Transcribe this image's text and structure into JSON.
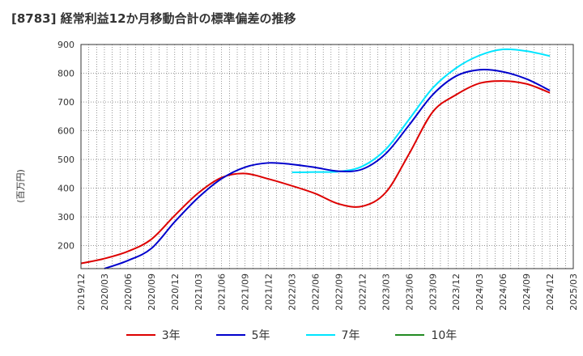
{
  "chart_data": {
    "type": "line",
    "title": "[8783]  経常利益12か月移動合計の標準偏差の推移",
    "ylabel": "(百万円)",
    "xlabel": "",
    "ylim": [
      120,
      900
    ],
    "yticks": [
      200,
      300,
      400,
      500,
      600,
      700,
      800,
      900
    ],
    "x_ticks": [
      "2019/12",
      "2020/03",
      "2020/06",
      "2020/09",
      "2020/12",
      "2021/03",
      "2021/06",
      "2021/09",
      "2021/12",
      "2022/03",
      "2022/06",
      "2022/09",
      "2022/12",
      "2023/03",
      "2023/06",
      "2023/09",
      "2023/12",
      "2024/03",
      "2024/06",
      "2024/09",
      "2024/12",
      "2025/03"
    ],
    "grid": true,
    "legend_position": "bottom",
    "series": [
      {
        "name": "3年",
        "color": "#dd0000",
        "x": [
          "2019/12",
          "2020/03",
          "2020/06",
          "2020/09",
          "2020/12",
          "2021/03",
          "2021/06",
          "2021/09",
          "2021/12",
          "2022/03",
          "2022/06",
          "2022/09",
          "2022/12",
          "2023/03",
          "2023/06",
          "2023/09",
          "2023/12",
          "2024/03",
          "2024/06",
          "2024/09",
          "2024/12"
        ],
        "values": [
          138,
          155,
          180,
          222,
          305,
          383,
          437,
          451,
          432,
          408,
          381,
          345,
          337,
          385,
          520,
          665,
          725,
          765,
          773,
          763,
          732
        ]
      },
      {
        "name": "5年",
        "color": "#0000cc",
        "x": [
          "2020/03",
          "2020/06",
          "2020/09",
          "2020/12",
          "2021/03",
          "2021/06",
          "2021/09",
          "2021/12",
          "2022/03",
          "2022/06",
          "2022/09",
          "2022/12",
          "2023/03",
          "2023/06",
          "2023/09",
          "2023/12",
          "2024/03",
          "2024/06",
          "2024/09",
          "2024/12"
        ],
        "values": [
          120,
          148,
          190,
          283,
          367,
          433,
          473,
          488,
          483,
          472,
          459,
          466,
          520,
          620,
          725,
          790,
          812,
          805,
          780,
          740
        ]
      },
      {
        "name": "7年",
        "color": "#00e5ff",
        "x": [
          "2022/03",
          "2022/06",
          "2022/09",
          "2022/12",
          "2023/03",
          "2023/06",
          "2023/09",
          "2023/12",
          "2024/03",
          "2024/06",
          "2024/09",
          "2024/12"
        ],
        "values": [
          455,
          456,
          458,
          476,
          535,
          640,
          748,
          818,
          862,
          883,
          877,
          860
        ]
      },
      {
        "name": "10年",
        "color": "#228b22",
        "x": [],
        "values": []
      }
    ]
  }
}
